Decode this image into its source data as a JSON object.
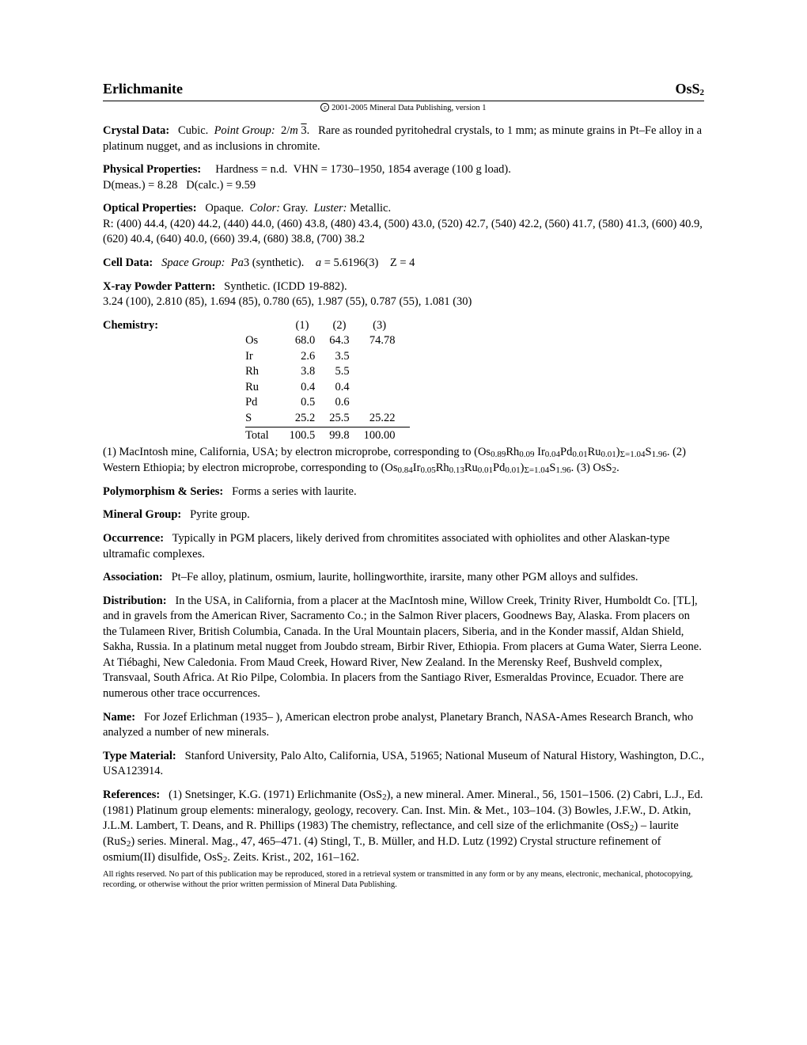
{
  "header": {
    "mineral_name": "Erlichmanite",
    "formula_html": "OsS<sub>2</sub>",
    "copyright": "2001-2005 Mineral Data Publishing, version 1"
  },
  "crystal_data": {
    "label": "Crystal Data:",
    "text_html": "Cubic. &nbsp;<span class='ital'>Point Group:</span> &nbsp;2/<span class='ital'>m</span> <span class='over'>3</span>. &nbsp;&nbsp;Rare as rounded pyritohedral crystals, to 1 mm; as minute grains in Pt–Fe alloy in a platinum nugget, and as inclusions in chromite."
  },
  "physical": {
    "label": "Physical Properties:",
    "text_html": "Hardness = n.d. &nbsp;VHN = 1730–1950, 1854 average (100 g load).<br>D(meas.) = 8.28 &nbsp;&nbsp;D(calc.) = 9.59"
  },
  "optical": {
    "label": "Optical Properties:",
    "text_html": "Opaque. &nbsp;<span class='ital'>Color:</span> Gray. &nbsp;<span class='ital'>Luster:</span> Metallic.<br>R: (400) 44.4, (420) 44.2, (440) 44.0, (460) 43.8, (480) 43.4, (500) 43.0, (520) 42.7, (540) 42.2, (560) 41.7, (580) 41.3, (600) 40.9, (620) 40.4, (640) 40.0, (660) 39.4, (680) 38.8, (700) 38.2"
  },
  "cell": {
    "label": "Cell Data:",
    "text_html": "<span class='ital'>Space Group:</span> &nbsp;<span class='ital'>Pa</span>3 (synthetic). &nbsp;&nbsp;&nbsp;<span class='ital'>a</span> = 5.6196(3) &nbsp;&nbsp;&nbsp;Z = 4"
  },
  "xray": {
    "label": "X-ray Powder Pattern:",
    "text_html": "Synthetic. (ICDD 19-882).<br>3.24 (100), 2.810 (85), 1.694 (85), 0.780 (65), 1.987 (55), 0.787 (55), 1.081 (30)"
  },
  "chemistry": {
    "label": "Chemistry:",
    "columns": [
      "(1)",
      "(2)",
      "(3)"
    ],
    "rows": [
      {
        "el": "Os",
        "v": [
          "68.0",
          "64.3",
          "74.78"
        ]
      },
      {
        "el": "Ir",
        "v": [
          "2.6",
          "3.5",
          ""
        ]
      },
      {
        "el": "Rh",
        "v": [
          "3.8",
          "5.5",
          ""
        ]
      },
      {
        "el": "Ru",
        "v": [
          "0.4",
          "0.4",
          ""
        ]
      },
      {
        "el": "Pd",
        "v": [
          "0.5",
          "0.6",
          ""
        ]
      },
      {
        "el": "S",
        "v": [
          "25.2",
          "25.5",
          "25.22"
        ]
      }
    ],
    "total": {
      "label": "Total",
      "v": [
        "100.5",
        "99.8",
        "100.00"
      ]
    },
    "notes_html": "(1) MacIntosh mine, California, USA; by electron microprobe, corresponding to (Os<sub>0.89</sub>Rh<sub>0.09</sub> Ir<sub>0.04</sub>Pd<sub>0.01</sub>Ru<sub>0.01</sub>)<sub>Σ=1.04</sub>S<sub>1.96</sub>. (2) Western Ethiopia; by electron microprobe, corresponding to (Os<sub>0.84</sub>Ir<sub>0.05</sub>Rh<sub>0.13</sub>Ru<sub>0.01</sub>Pd<sub>0.01</sub>)<sub>Σ=1.04</sub>S<sub>1.96</sub>. (3) OsS<sub>2</sub>."
  },
  "polymorphism": {
    "label": "Polymorphism & Series:",
    "text": "Forms a series with laurite."
  },
  "group": {
    "label": "Mineral Group:",
    "text": "Pyrite group."
  },
  "occurrence": {
    "label": "Occurrence:",
    "text": "Typically in PGM placers, likely derived from chromitites associated with ophiolites and other Alaskan-type ultramafic complexes."
  },
  "association": {
    "label": "Association:",
    "text": "Pt–Fe alloy, platinum, osmium, laurite, hollingworthite, irarsite, many other PGM alloys and sulfides."
  },
  "distribution": {
    "label": "Distribution:",
    "text": "In the USA, in California, from a placer at the MacIntosh mine, Willow Creek, Trinity River, Humboldt Co. [TL], and in gravels from the American River, Sacramento Co.; in the Salmon River placers, Goodnews Bay, Alaska. From placers on the Tulameen River, British Columbia, Canada. In the Ural Mountain placers, Siberia, and in the Konder massif, Aldan Shield, Sakha, Russia. In a platinum metal nugget from Joubdo stream, Birbir River, Ethiopia. From placers at Guma Water, Sierra Leone. At Tiébaghi, New Caledonia. From Maud Creek, Howard River, New Zealand. In the Merensky Reef, Bushveld complex, Transvaal, South Africa. At Rio Pilpe, Colombia. In placers from the Santiago River, Esmeraldas Province, Ecuador. There are numerous other trace occurrences."
  },
  "name_sec": {
    "label": "Name:",
    "text": "For Jozef Erlichman (1935– ), American electron probe analyst, Planetary Branch, NASA-Ames Research Branch, who analyzed a number of new minerals."
  },
  "type_material": {
    "label": "Type Material:",
    "text": "Stanford University, Palo Alto, California, USA, 51965; National Museum of Natural History, Washington, D.C., USA123914."
  },
  "references": {
    "label": "References:",
    "text_html": "(1) Snetsinger, K.G. (1971) Erlichmanite (OsS<sub>2</sub>), a new mineral. Amer. Mineral., 56, 1501–1506. (2) Cabri, L.J., Ed. (1981) Platinum group elements: mineralogy, geology, recovery. Can. Inst. Min. & Met., 103–104. (3) Bowles, J.F.W., D. Atkin, J.L.M. Lambert, T. Deans, and R. Phillips (1983) The chemistry, reflectance, and cell size of the erlichmanite (OsS<sub>2</sub>) – laurite (RuS<sub>2</sub>) series. Mineral. Mag., 47, 465–471. (4) Stingl, T., B. Müller, and H.D. Lutz (1992) Crystal structure refinement of osmium(II) disulfide, OsS<sub>2</sub>. Zeits. Krist., 202, 161–162."
  },
  "footer": "All rights reserved. No part of this publication may be reproduced, stored in a retrieval system or transmitted in any form or by any means, electronic, mechanical, photocopying, recording, or otherwise without the prior written permission of Mineral Data Publishing."
}
